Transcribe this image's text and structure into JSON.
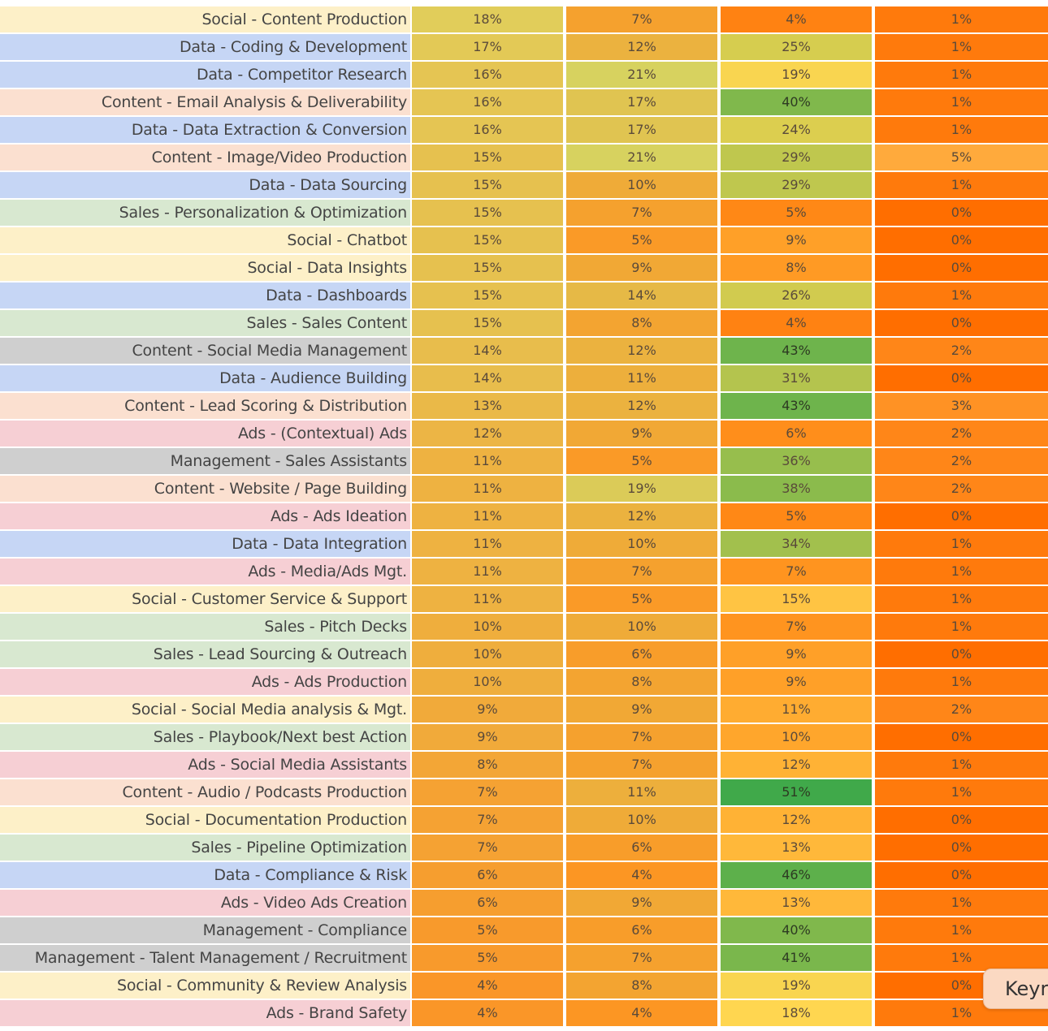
{
  "chart_data": {
    "type": "heatmap",
    "colors": {
      "category_backgrounds": {
        "Social": "#fdf0c8",
        "Data": "#c6d6f5",
        "Content": "#fbe0d0",
        "Sales": "#d8e8d0",
        "Ads": "#f6cfd4",
        "Management": "#cfcfcf"
      },
      "scale": {
        "low": "#ff6a00",
        "mid": "#ffd650",
        "high": "#3aa84a"
      }
    },
    "rows": [
      {
        "label": "Social - Content Production",
        "category": "Social",
        "values": [
          18,
          7,
          4,
          1
        ],
        "display": [
          "18%",
          "7%",
          "4%",
          "1%"
        ]
      },
      {
        "label": "Data - Coding & Development",
        "category": "Data",
        "values": [
          17,
          12,
          25,
          1
        ],
        "display": [
          "17%",
          "12%",
          "25%",
          "1%"
        ]
      },
      {
        "label": "Data - Competitor Research",
        "category": "Data",
        "values": [
          16,
          21,
          19,
          1
        ],
        "display": [
          "16%",
          "21%",
          "19%",
          "1%"
        ]
      },
      {
        "label": "Content - Email Analysis & Deliverability",
        "category": "Content",
        "values": [
          16,
          17,
          40,
          1
        ],
        "display": [
          "16%",
          "17%",
          "40%",
          "1%"
        ]
      },
      {
        "label": "Data - Data Extraction & Conversion",
        "category": "Data",
        "values": [
          16,
          17,
          24,
          1
        ],
        "display": [
          "16%",
          "17%",
          "24%",
          "1%"
        ]
      },
      {
        "label": "Content - Image/Video Production",
        "category": "Content",
        "values": [
          15,
          21,
          29,
          5
        ],
        "display": [
          "15%",
          "21%",
          "29%",
          "5%"
        ]
      },
      {
        "label": "Data - Data Sourcing",
        "category": "Data",
        "values": [
          15,
          10,
          29,
          1
        ],
        "display": [
          "15%",
          "10%",
          "29%",
          "1%"
        ]
      },
      {
        "label": "Sales - Personalization & Optimization",
        "category": "Sales",
        "values": [
          15,
          7,
          5,
          0
        ],
        "display": [
          "15%",
          "7%",
          "5%",
          "0%"
        ]
      },
      {
        "label": "Social - Chatbot",
        "category": "Social",
        "values": [
          15,
          5,
          9,
          0
        ],
        "display": [
          "15%",
          "5%",
          "9%",
          "0%"
        ]
      },
      {
        "label": "Social - Data Insights",
        "category": "Social",
        "values": [
          15,
          9,
          8,
          0
        ],
        "display": [
          "15%",
          "9%",
          "8%",
          "0%"
        ]
      },
      {
        "label": "Data - Dashboards",
        "category": "Data",
        "values": [
          15,
          14,
          26,
          1
        ],
        "display": [
          "15%",
          "14%",
          "26%",
          "1%"
        ]
      },
      {
        "label": "Sales - Sales Content",
        "category": "Sales",
        "values": [
          15,
          8,
          4,
          0
        ],
        "display": [
          "15%",
          "8%",
          "4%",
          "0%"
        ]
      },
      {
        "label": "Content - Social Media Management",
        "category": "Management",
        "values": [
          14,
          12,
          43,
          2
        ],
        "display": [
          "14%",
          "12%",
          "43%",
          "2%"
        ]
      },
      {
        "label": "Data - Audience Building",
        "category": "Data",
        "values": [
          14,
          11,
          31,
          0
        ],
        "display": [
          "14%",
          "11%",
          "31%",
          "0%"
        ]
      },
      {
        "label": "Content - Lead Scoring & Distribution",
        "category": "Content",
        "values": [
          13,
          12,
          43,
          3
        ],
        "display": [
          "13%",
          "12%",
          "43%",
          "3%"
        ]
      },
      {
        "label": "Ads - (Contextual) Ads",
        "category": "Ads",
        "values": [
          12,
          9,
          6,
          2
        ],
        "display": [
          "12%",
          "9%",
          "6%",
          "2%"
        ]
      },
      {
        "label": "Management - Sales Assistants",
        "category": "Management",
        "values": [
          11,
          5,
          36,
          2
        ],
        "display": [
          "11%",
          "5%",
          "36%",
          "2%"
        ]
      },
      {
        "label": "Content - Website / Page Building",
        "category": "Content",
        "values": [
          11,
          19,
          38,
          2
        ],
        "display": [
          "11%",
          "19%",
          "38%",
          "2%"
        ]
      },
      {
        "label": "Ads - Ads Ideation",
        "category": "Ads",
        "values": [
          11,
          12,
          5,
          0
        ],
        "display": [
          "11%",
          "12%",
          "5%",
          "0%"
        ]
      },
      {
        "label": "Data - Data Integration",
        "category": "Data",
        "values": [
          11,
          10,
          34,
          1
        ],
        "display": [
          "11%",
          "10%",
          "34%",
          "1%"
        ]
      },
      {
        "label": "Ads - Media/Ads Mgt.",
        "category": "Ads",
        "values": [
          11,
          7,
          7,
          1
        ],
        "display": [
          "11%",
          "7%",
          "7%",
          "1%"
        ]
      },
      {
        "label": "Social - Customer Service & Support",
        "category": "Social",
        "values": [
          11,
          5,
          15,
          1
        ],
        "display": [
          "11%",
          "5%",
          "15%",
          "1%"
        ]
      },
      {
        "label": "Sales - Pitch Decks",
        "category": "Sales",
        "values": [
          10,
          10,
          7,
          1
        ],
        "display": [
          "10%",
          "10%",
          "7%",
          "1%"
        ]
      },
      {
        "label": "Sales - Lead Sourcing & Outreach",
        "category": "Sales",
        "values": [
          10,
          6,
          9,
          0
        ],
        "display": [
          "10%",
          "6%",
          "9%",
          "0%"
        ]
      },
      {
        "label": "Ads - Ads Production",
        "category": "Ads",
        "values": [
          10,
          8,
          9,
          1
        ],
        "display": [
          "10%",
          "8%",
          "9%",
          "1%"
        ]
      },
      {
        "label": "Social - Social Media analysis & Mgt.",
        "category": "Social",
        "values": [
          9,
          9,
          11,
          2
        ],
        "display": [
          "9%",
          "9%",
          "11%",
          "2%"
        ]
      },
      {
        "label": "Sales - Playbook/Next best Action",
        "category": "Sales",
        "values": [
          9,
          7,
          10,
          0
        ],
        "display": [
          "9%",
          "7%",
          "10%",
          "0%"
        ]
      },
      {
        "label": "Ads - Social Media Assistants",
        "category": "Ads",
        "values": [
          8,
          7,
          12,
          1
        ],
        "display": [
          "8%",
          "7%",
          "12%",
          "1%"
        ]
      },
      {
        "label": "Content - Audio / Podcasts Production",
        "category": "Content",
        "values": [
          7,
          11,
          51,
          1
        ],
        "display": [
          "7%",
          "11%",
          "51%",
          "1%"
        ]
      },
      {
        "label": "Social - Documentation Production",
        "category": "Social",
        "values": [
          7,
          10,
          12,
          0
        ],
        "display": [
          "7%",
          "10%",
          "12%",
          "0%"
        ]
      },
      {
        "label": "Sales - Pipeline Optimization",
        "category": "Sales",
        "values": [
          7,
          6,
          13,
          0
        ],
        "display": [
          "7%",
          "6%",
          "13%",
          "0%"
        ]
      },
      {
        "label": "Data -  Compliance & Risk",
        "category": "Data",
        "values": [
          6,
          4,
          46,
          0
        ],
        "display": [
          "6%",
          "4%",
          "46%",
          "0%"
        ]
      },
      {
        "label": "Ads - Video Ads Creation",
        "category": "Ads",
        "values": [
          6,
          9,
          13,
          1
        ],
        "display": [
          "6%",
          "9%",
          "13%",
          "1%"
        ]
      },
      {
        "label": "Management - Compliance",
        "category": "Management",
        "values": [
          5,
          6,
          40,
          1
        ],
        "display": [
          "5%",
          "6%",
          "40%",
          "1%"
        ]
      },
      {
        "label": "Management - Talent Management / Recruitment",
        "category": "Management",
        "values": [
          5,
          7,
          41,
          1
        ],
        "display": [
          "5%",
          "7%",
          "41%",
          "1%"
        ]
      },
      {
        "label": "Social - Community & Review Analysis",
        "category": "Social",
        "values": [
          4,
          8,
          19,
          0
        ],
        "display": [
          "4%",
          "8%",
          "19%",
          "0%"
        ]
      },
      {
        "label": "Ads - Brand Safety",
        "category": "Ads",
        "values": [
          4,
          4,
          18,
          1
        ],
        "display": [
          "4%",
          "4%",
          "18%",
          "1%"
        ]
      }
    ]
  },
  "keynote_tooltip": {
    "text": "Keyr"
  }
}
